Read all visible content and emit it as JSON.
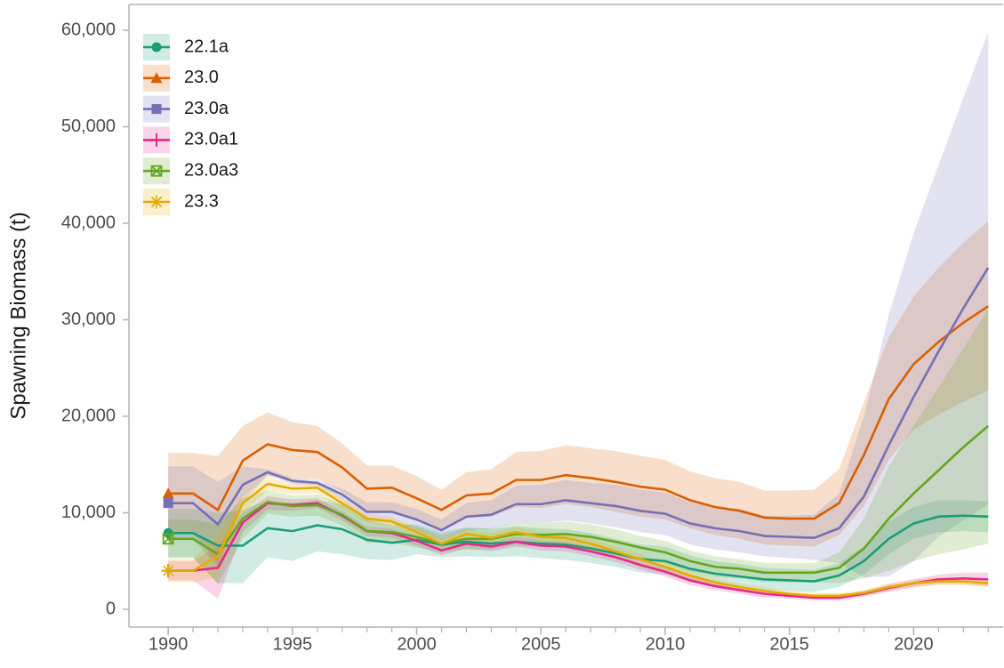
{
  "chart_data": {
    "type": "line",
    "y_label": "Spawning Biomass (t)",
    "x": [
      1990,
      1991,
      1992,
      1993,
      1994,
      1995,
      1996,
      1997,
      1998,
      1999,
      2000,
      2001,
      2002,
      2003,
      2004,
      2005,
      2006,
      2007,
      2008,
      2009,
      2010,
      2011,
      2012,
      2013,
      2014,
      2015,
      2016,
      2017,
      2018,
      2019,
      2020,
      2021,
      2022,
      2023
    ],
    "xlim": [
      1988.42,
      2023.6
    ],
    "xticks": [
      1990,
      1995,
      2000,
      2005,
      2010,
      2015,
      2020
    ],
    "ylim": [
      -1843,
      62673
    ],
    "yticks": [
      0,
      {
        "value": 10000,
        "label": "10,000"
      },
      {
        "value": 20000,
        "label": "20,000"
      },
      {
        "value": 30000,
        "label": "30,000"
      },
      {
        "value": 40000,
        "label": "40,000"
      },
      {
        "value": 50000,
        "label": "50,000"
      },
      {
        "value": 60000,
        "label": "60,000"
      }
    ],
    "legend": "top-left",
    "series": [
      {
        "name": "22.1a",
        "color": "#1b9e77",
        "marker": "circle",
        "values": [
          7900,
          7900,
          6600,
          6600,
          8400,
          8100,
          8700,
          8300,
          7200,
          6900,
          7200,
          6700,
          7000,
          6800,
          7000,
          6800,
          6700,
          6300,
          5800,
          5200,
          5000,
          4200,
          3700,
          3400,
          3100,
          3000,
          2900,
          3500,
          5000,
          7300,
          8900,
          9600,
          9700,
          9600
        ],
        "upper": [
          10400,
          10400,
          10000,
          10300,
          11300,
          11000,
          11300,
          10900,
          9200,
          8700,
          8800,
          8000,
          8500,
          8300,
          8600,
          8400,
          8300,
          7900,
          7300,
          6700,
          6500,
          5600,
          5000,
          4700,
          4300,
          4200,
          4100,
          4800,
          6500,
          9100,
          10600,
          11300,
          11300,
          11200
        ],
        "lower": [
          5400,
          5400,
          2700,
          2700,
          5400,
          5000,
          6000,
          5700,
          5200,
          5100,
          5700,
          5400,
          5500,
          5400,
          5500,
          5300,
          5100,
          4800,
          4400,
          3800,
          3600,
          2900,
          2500,
          2200,
          2000,
          1900,
          1800,
          2300,
          3600,
          5700,
          7300,
          8000,
          8100,
          8000
        ]
      },
      {
        "name": "23.0",
        "color": "#d95f02",
        "marker": "triangle",
        "values": [
          12000,
          12000,
          10300,
          15400,
          17100,
          16500,
          16300,
          14700,
          12500,
          12600,
          11500,
          10300,
          11800,
          12000,
          13400,
          13400,
          13900,
          13600,
          13200,
          12700,
          12400,
          11300,
          10600,
          10200,
          9500,
          9400,
          9400,
          11000,
          16000,
          21800,
          25400,
          27700,
          29700,
          31400
        ],
        "upper": [
          16200,
          16200,
          15900,
          19000,
          20400,
          19400,
          19000,
          17200,
          14900,
          14900,
          13800,
          12400,
          14200,
          14500,
          16300,
          16400,
          17000,
          16700,
          16400,
          15900,
          15500,
          14300,
          13600,
          13200,
          12300,
          12300,
          12400,
          14500,
          21500,
          28200,
          32400,
          35400,
          38000,
          40200
        ],
        "lower": [
          7900,
          7900,
          4700,
          11800,
          13800,
          13500,
          13500,
          12200,
          10200,
          10200,
          9300,
          8300,
          9500,
          9600,
          10600,
          10500,
          10900,
          10600,
          10100,
          9600,
          9300,
          8400,
          7700,
          7300,
          6700,
          6600,
          6500,
          7700,
          10700,
          15500,
          18600,
          20200,
          21500,
          22700
        ]
      },
      {
        "name": "23.0a",
        "color": "#7570b3",
        "marker": "square",
        "values": [
          11000,
          11000,
          8800,
          12900,
          14200,
          13300,
          13100,
          11900,
          10100,
          10100,
          9300,
          8200,
          9600,
          9800,
          10900,
          10900,
          11300,
          11000,
          10700,
          10200,
          9900,
          8900,
          8400,
          8100,
          7600,
          7500,
          7400,
          8400,
          11700,
          17000,
          22000,
          26700,
          31200,
          35400
        ],
        "upper": [
          14800,
          14800,
          13200,
          14800,
          14500,
          13600,
          13400,
          12500,
          11100,
          11100,
          10400,
          9300,
          11000,
          11300,
          12800,
          12900,
          13400,
          13100,
          12900,
          12400,
          12100,
          11100,
          10600,
          10400,
          9700,
          9700,
          9800,
          12000,
          20000,
          30500,
          39000,
          46000,
          53000,
          59800
        ],
        "lower": [
          7200,
          7200,
          4400,
          11000,
          13900,
          13000,
          12800,
          11300,
          9100,
          9100,
          8200,
          7100,
          8200,
          8300,
          9000,
          8900,
          9200,
          8900,
          8500,
          8000,
          7700,
          6700,
          6200,
          5900,
          5500,
          5300,
          5100,
          4800,
          3300,
          3400,
          5000,
          7500,
          9200,
          10900
        ]
      },
      {
        "name": "23.0a1",
        "color": "#e7298a",
        "marker": "plus",
        "values": [
          4000,
          4000,
          4300,
          9000,
          11000,
          10800,
          11000,
          9700,
          8100,
          7900,
          7100,
          6100,
          6800,
          6500,
          7000,
          6600,
          6500,
          6000,
          5400,
          4600,
          3900,
          3000,
          2400,
          2000,
          1600,
          1400,
          1200,
          1200,
          1600,
          2200,
          2700,
          3100,
          3200,
          3100
        ],
        "upper": [
          5000,
          5000,
          6500,
          10000,
          11700,
          11400,
          11500,
          10200,
          8600,
          8400,
          7600,
          6600,
          7300,
          7000,
          7500,
          7100,
          7000,
          6500,
          5900,
          5100,
          4400,
          3500,
          2800,
          2400,
          2000,
          1700,
          1500,
          1500,
          1900,
          2600,
          3100,
          3600,
          3800,
          3800
        ],
        "lower": [
          3000,
          3000,
          1100,
          8000,
          10300,
          10200,
          10500,
          9200,
          7600,
          7400,
          6600,
          5600,
          6300,
          6000,
          6500,
          6100,
          6000,
          5500,
          4900,
          4100,
          3400,
          2500,
          2000,
          1600,
          1200,
          1100,
          900,
          900,
          1300,
          1800,
          2300,
          2600,
          2600,
          2400
        ]
      },
      {
        "name": "23.0a3",
        "color": "#66a61e",
        "marker": "square-x",
        "values": [
          7300,
          7300,
          5700,
          9400,
          11100,
          10700,
          10800,
          9800,
          8100,
          8000,
          7500,
          6800,
          7300,
          7300,
          7800,
          7700,
          7800,
          7500,
          7000,
          6400,
          5900,
          5000,
          4400,
          4200,
          3800,
          3800,
          3800,
          4300,
          6300,
          9400,
          12000,
          14400,
          16800,
          19000
        ],
        "upper": [
          9300,
          9300,
          8800,
          11500,
          12300,
          11800,
          11900,
          10900,
          9300,
          9100,
          8600,
          7700,
          8400,
          8400,
          9000,
          8900,
          9100,
          8800,
          8300,
          7600,
          7100,
          6100,
          5500,
          5200,
          4800,
          4800,
          4800,
          5900,
          9400,
          14800,
          19000,
          23000,
          27000,
          31200
        ],
        "lower": [
          5300,
          5300,
          2600,
          7300,
          9900,
          9600,
          9700,
          8700,
          6900,
          6900,
          6400,
          5900,
          6200,
          6200,
          6600,
          6500,
          6500,
          6200,
          5700,
          5200,
          4700,
          3900,
          3300,
          3200,
          2800,
          2800,
          2800,
          2700,
          3200,
          4000,
          5000,
          5700,
          6200,
          6800
        ]
      },
      {
        "name": "23.3",
        "color": "#e6ab02",
        "marker": "asterisk",
        "values": [
          4000,
          4000,
          5500,
          11000,
          13000,
          12500,
          12600,
          11000,
          9400,
          9100,
          8000,
          6800,
          7800,
          7400,
          8000,
          7500,
          7400,
          6800,
          6000,
          5200,
          4400,
          3500,
          2800,
          2300,
          1900,
          1600,
          1400,
          1400,
          1700,
          2300,
          2700,
          2900,
          2900,
          2700
        ],
        "upper": [
          5200,
          5200,
          7700,
          12000,
          13700,
          13100,
          13200,
          11600,
          9900,
          9600,
          8500,
          7300,
          8300,
          7900,
          8500,
          8000,
          7900,
          7300,
          6500,
          5700,
          4900,
          4000,
          3200,
          2700,
          2300,
          1900,
          1700,
          1700,
          2000,
          2700,
          3100,
          3300,
          3300,
          3200
        ],
        "lower": [
          2800,
          2800,
          3300,
          10000,
          12300,
          11900,
          12000,
          10400,
          8900,
          8600,
          7500,
          6300,
          7300,
          6900,
          7500,
          7000,
          6900,
          6300,
          5500,
          4700,
          3900,
          3000,
          2400,
          1900,
          1500,
          1300,
          1100,
          1100,
          1400,
          1900,
          2300,
          2500,
          2500,
          2300
        ]
      }
    ]
  }
}
